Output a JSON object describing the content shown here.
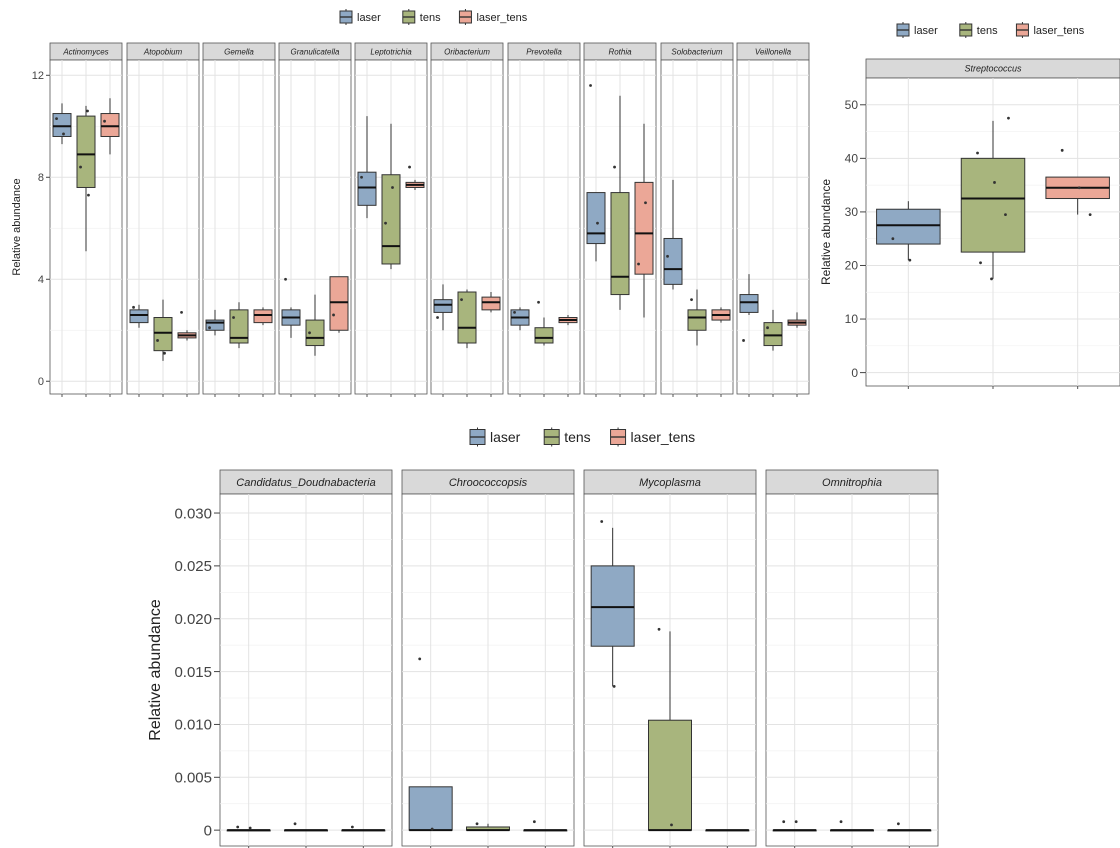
{
  "legend": {
    "items": [
      "laser",
      "tens",
      "laser_tens"
    ]
  },
  "colors": {
    "laser": "#8fa9c4",
    "tens": "#a8b57d",
    "laser_tens": "#eba797"
  },
  "chart_data": [
    {
      "id": "panelA",
      "type": "boxplot",
      "ylabel": "Relative abundance",
      "ylim": [
        -0.5,
        12.6
      ],
      "yticks": [
        0,
        4,
        8,
        12
      ],
      "yticklabels": [
        "0",
        "4",
        "8",
        "12"
      ],
      "groups": [
        "laser",
        "tens",
        "laser_tens"
      ],
      "facets": [
        {
          "name": "Actinomyces",
          "boxes": [
            {
              "group": "laser",
              "min": 9.3,
              "q1": 9.6,
              "median": 10.0,
              "q3": 10.5,
              "max": 10.9,
              "points": [
                10.3,
                9.7
              ]
            },
            {
              "group": "tens",
              "min": 5.1,
              "q1": 7.6,
              "median": 8.9,
              "q3": 10.4,
              "max": 10.8,
              "points": [
                8.4,
                10.6,
                7.3
              ]
            },
            {
              "group": "laser_tens",
              "min": 8.9,
              "q1": 9.6,
              "median": 10.0,
              "q3": 10.5,
              "max": 11.1,
              "points": [
                10.2
              ]
            }
          ]
        },
        {
          "name": "Atopobium",
          "boxes": [
            {
              "group": "laser",
              "min": 2.1,
              "q1": 2.3,
              "median": 2.6,
              "q3": 2.8,
              "max": 3.0,
              "points": [
                2.9
              ]
            },
            {
              "group": "tens",
              "min": 0.8,
              "q1": 1.2,
              "median": 1.9,
              "q3": 2.5,
              "max": 3.2,
              "points": [
                1.6,
                1.1
              ]
            },
            {
              "group": "laser_tens",
              "min": 1.6,
              "q1": 1.7,
              "median": 1.8,
              "q3": 1.9,
              "max": 2.0,
              "points": [
                2.7
              ]
            }
          ]
        },
        {
          "name": "Gemella",
          "boxes": [
            {
              "group": "laser",
              "min": 1.8,
              "q1": 2.0,
              "median": 2.3,
              "q3": 2.4,
              "max": 2.8,
              "points": [
                2.1
              ]
            },
            {
              "group": "tens",
              "min": 1.3,
              "q1": 1.5,
              "median": 1.7,
              "q3": 2.8,
              "max": 3.1,
              "points": [
                2.5
              ]
            },
            {
              "group": "laser_tens",
              "min": 2.2,
              "q1": 2.3,
              "median": 2.6,
              "q3": 2.8,
              "max": 2.9,
              "points": []
            }
          ]
        },
        {
          "name": "Granulicatella",
          "boxes": [
            {
              "group": "laser",
              "min": 1.7,
              "q1": 2.2,
              "median": 2.5,
              "q3": 2.8,
              "max": 2.9,
              "points": [
                4.0
              ]
            },
            {
              "group": "tens",
              "min": 1.0,
              "q1": 1.4,
              "median": 1.7,
              "q3": 2.4,
              "max": 3.4,
              "points": [
                1.9
              ]
            },
            {
              "group": "laser_tens",
              "min": 1.9,
              "q1": 2.0,
              "median": 3.1,
              "q3": 4.1,
              "max": 4.1,
              "points": [
                2.6
              ]
            }
          ]
        },
        {
          "name": "Leptotrichia",
          "boxes": [
            {
              "group": "laser",
              "min": 6.4,
              "q1": 6.9,
              "median": 7.6,
              "q3": 8.2,
              "max": 10.4,
              "points": [
                8.0
              ]
            },
            {
              "group": "tens",
              "min": 4.4,
              "q1": 4.6,
              "median": 5.3,
              "q3": 8.1,
              "max": 10.1,
              "points": [
                6.2,
                7.6
              ]
            },
            {
              "group": "laser_tens",
              "min": 7.5,
              "q1": 7.6,
              "median": 7.7,
              "q3": 7.8,
              "max": 7.9,
              "points": [
                8.4
              ]
            }
          ]
        },
        {
          "name": "Oribacterium",
          "boxes": [
            {
              "group": "laser",
              "min": 2.0,
              "q1": 2.7,
              "median": 3.0,
              "q3": 3.2,
              "max": 3.8,
              "points": [
                2.5
              ]
            },
            {
              "group": "tens",
              "min": 1.3,
              "q1": 1.5,
              "median": 2.1,
              "q3": 3.5,
              "max": 3.6,
              "points": [
                3.2
              ]
            },
            {
              "group": "laser_tens",
              "min": 2.7,
              "q1": 2.8,
              "median": 3.1,
              "q3": 3.3,
              "max": 3.5,
              "points": []
            }
          ]
        },
        {
          "name": "Prevotella",
          "boxes": [
            {
              "group": "laser",
              "min": 2.0,
              "q1": 2.2,
              "median": 2.5,
              "q3": 2.8,
              "max": 2.9,
              "points": [
                2.7
              ]
            },
            {
              "group": "tens",
              "min": 1.4,
              "q1": 1.5,
              "median": 1.7,
              "q3": 2.1,
              "max": 2.5,
              "points": [
                3.1
              ]
            },
            {
              "group": "laser_tens",
              "min": 2.2,
              "q1": 2.3,
              "median": 2.4,
              "q3": 2.5,
              "max": 2.6,
              "points": []
            }
          ]
        },
        {
          "name": "Rothia",
          "boxes": [
            {
              "group": "laser",
              "min": 4.7,
              "q1": 5.4,
              "median": 5.8,
              "q3": 7.4,
              "max": 7.4,
              "points": [
                11.6,
                6.2
              ]
            },
            {
              "group": "tens",
              "min": 2.8,
              "q1": 3.4,
              "median": 4.1,
              "q3": 7.4,
              "max": 11.2,
              "points": [
                8.4
              ]
            },
            {
              "group": "laser_tens",
              "min": 2.5,
              "q1": 4.2,
              "median": 5.8,
              "q3": 7.8,
              "max": 10.1,
              "points": [
                4.6,
                7.0
              ]
            }
          ]
        },
        {
          "name": "Solobacterium",
          "boxes": [
            {
              "group": "laser",
              "min": 3.6,
              "q1": 3.8,
              "median": 4.4,
              "q3": 5.6,
              "max": 7.9,
              "points": [
                4.9
              ]
            },
            {
              "group": "tens",
              "min": 1.4,
              "q1": 2.0,
              "median": 2.5,
              "q3": 2.8,
              "max": 3.6,
              "points": [
                3.2
              ]
            },
            {
              "group": "laser_tens",
              "min": 2.3,
              "q1": 2.4,
              "median": 2.6,
              "q3": 2.8,
              "max": 2.9,
              "points": []
            }
          ]
        },
        {
          "name": "Veillonella",
          "boxes": [
            {
              "group": "laser",
              "min": 2.6,
              "q1": 2.7,
              "median": 3.1,
              "q3": 3.4,
              "max": 4.2,
              "points": [
                1.6
              ]
            },
            {
              "group": "tens",
              "min": 1.2,
              "q1": 1.4,
              "median": 1.8,
              "q3": 2.3,
              "max": 2.8,
              "points": [
                2.1
              ]
            },
            {
              "group": "laser_tens",
              "min": 2.1,
              "q1": 2.2,
              "median": 2.3,
              "q3": 2.4,
              "max": 2.7,
              "points": []
            }
          ]
        }
      ]
    },
    {
      "id": "panelB",
      "type": "boxplot",
      "ylabel": "Relative abundance",
      "ylim": [
        -2.5,
        55
      ],
      "yticks": [
        0,
        10,
        20,
        30,
        40,
        50
      ],
      "yticklabels": [
        "0",
        "10",
        "20",
        "30",
        "40",
        "50"
      ],
      "groups": [
        "laser",
        "tens",
        "laser_tens"
      ],
      "facets": [
        {
          "name": "Streptococcus",
          "boxes": [
            {
              "group": "laser",
              "min": 21.0,
              "q1": 24.0,
              "median": 27.5,
              "q3": 30.5,
              "max": 32.0,
              "points": [
                25.0,
                21.0
              ]
            },
            {
              "group": "tens",
              "min": 17.5,
              "q1": 22.5,
              "median": 32.5,
              "q3": 40.0,
              "max": 47.0,
              "points": [
                41.0,
                35.5,
                29.5,
                20.5,
                17.5,
                47.5
              ]
            },
            {
              "group": "laser_tens",
              "min": 29.5,
              "q1": 32.5,
              "median": 34.5,
              "q3": 36.5,
              "max": 36.5,
              "points": [
                41.5,
                34.5,
                29.5
              ]
            }
          ]
        }
      ]
    },
    {
      "id": "panelC",
      "type": "boxplot",
      "ylabel": "Relative abundance",
      "ylim": [
        -0.0015,
        0.0318
      ],
      "yticks": [
        0,
        0.005,
        0.01,
        0.015,
        0.02,
        0.025,
        0.03
      ],
      "yticklabels": [
        "0",
        "0.005",
        "0.010",
        "0.015",
        "0.020",
        "0.025",
        "0.030"
      ],
      "groups": [
        "laser",
        "tens",
        "laser_tens"
      ],
      "facets": [
        {
          "name": "Candidatus_Doudnabacteria",
          "boxes": [
            {
              "group": "laser",
              "min": 0,
              "q1": 0,
              "median": 0,
              "q3": 0,
              "max": 0,
              "points": [
                0.0003,
                0.0002
              ]
            },
            {
              "group": "tens",
              "min": 0,
              "q1": 0,
              "median": 0,
              "q3": 0,
              "max": 0,
              "points": [
                0.0006
              ]
            },
            {
              "group": "laser_tens",
              "min": 0,
              "q1": 0,
              "median": 0,
              "q3": 0,
              "max": 0,
              "points": [
                0.0003
              ]
            }
          ]
        },
        {
          "name": "Chroococcopsis",
          "boxes": [
            {
              "group": "laser",
              "min": 0,
              "q1": 0,
              "median": 0,
              "q3": 0.0041,
              "max": 0.0041,
              "points": [
                0.0162,
                0.0001
              ]
            },
            {
              "group": "tens",
              "min": 0,
              "q1": 0,
              "median": 0,
              "q3": 0.0003,
              "max": 0.0006,
              "points": [
                0.0006
              ]
            },
            {
              "group": "laser_tens",
              "min": 0,
              "q1": 0,
              "median": 0,
              "q3": 0,
              "max": 0,
              "points": [
                0.0008
              ]
            }
          ]
        },
        {
          "name": "Mycoplasma",
          "boxes": [
            {
              "group": "laser",
              "min": 0.0136,
              "q1": 0.0174,
              "median": 0.0211,
              "q3": 0.025,
              "max": 0.0286,
              "points": [
                0.0292,
                0.0136
              ]
            },
            {
              "group": "tens",
              "min": 0,
              "q1": 0,
              "median": 0,
              "q3": 0.0104,
              "max": 0.0188,
              "points": [
                0.019,
                0.0005
              ]
            },
            {
              "group": "laser_tens",
              "min": 0,
              "q1": 0,
              "median": 0,
              "q3": 0,
              "max": 0,
              "points": []
            }
          ]
        },
        {
          "name": "Omnitrophia",
          "boxes": [
            {
              "group": "laser",
              "min": 0,
              "q1": 0,
              "median": 0,
              "q3": 0,
              "max": 0,
              "points": [
                0.0008,
                0.0008
              ]
            },
            {
              "group": "tens",
              "min": 0,
              "q1": 0,
              "median": 0,
              "q3": 0,
              "max": 0,
              "points": [
                0.0008
              ]
            },
            {
              "group": "laser_tens",
              "min": 0,
              "q1": 0,
              "median": 0,
              "q3": 0,
              "max": 0,
              "points": [
                0.0006
              ]
            }
          ]
        }
      ]
    }
  ]
}
